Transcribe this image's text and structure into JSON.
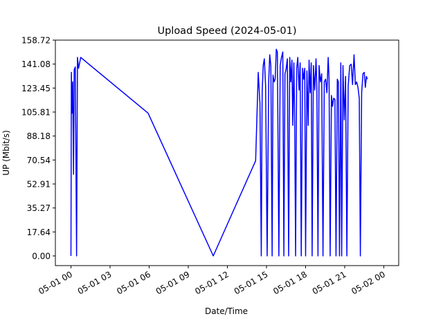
{
  "chart_data": {
    "type": "line",
    "title": "Upload Speed (2024-05-01)",
    "xlabel": "Date/Time",
    "ylabel": "UP (Mbit/s)",
    "ylim": [
      0,
      158.72
    ],
    "xlim": [
      "2024-05-01T00:00",
      "2024-05-02T00:00"
    ],
    "y_ticks": [
      "0.00",
      "17.64",
      "35.27",
      "52.91",
      "70.54",
      "88.18",
      "105.81",
      "123.45",
      "141.08",
      "158.72"
    ],
    "x_ticks": [
      {
        "t": "2024-05-01T00:00",
        "label": "05-01 00"
      },
      {
        "t": "2024-05-01T03:00",
        "label": "05-01 03"
      },
      {
        "t": "2024-05-01T06:00",
        "label": "05-01 06"
      },
      {
        "t": "2024-05-01T09:00",
        "label": "05-01 09"
      },
      {
        "t": "2024-05-01T12:00",
        "label": "05-01 12"
      },
      {
        "t": "2024-05-01T15:00",
        "label": "05-01 15"
      },
      {
        "t": "2024-05-01T18:00",
        "label": "05-01 18"
      },
      {
        "t": "2024-05-01T21:00",
        "label": "05-01 21"
      },
      {
        "t": "2024-05-02T00:00",
        "label": "05-02 00"
      }
    ],
    "grid": false,
    "line_color": "#0000ff",
    "series": [
      {
        "points": [
          [
            "2024-05-01T00:00",
            0
          ],
          [
            "2024-05-01T00:02",
            135
          ],
          [
            "2024-05-01T00:05",
            105
          ],
          [
            "2024-05-01T00:08",
            128
          ],
          [
            "2024-05-01T00:12",
            60
          ],
          [
            "2024-05-01T00:15",
            137
          ],
          [
            "2024-05-01T00:20",
            139
          ],
          [
            "2024-05-01T00:26",
            0
          ],
          [
            "2024-05-01T00:30",
            146
          ],
          [
            "2024-05-01T00:35",
            138
          ],
          [
            "2024-05-01T00:45",
            146
          ],
          [
            "2024-05-01T05:55",
            105
          ],
          [
            "2024-05-01T10:55",
            0
          ],
          [
            "2024-05-01T14:10",
            70
          ],
          [
            "2024-05-01T14:22",
            135
          ],
          [
            "2024-05-01T14:30",
            112
          ],
          [
            "2024-05-01T14:36",
            0
          ],
          [
            "2024-05-01T14:40",
            120
          ],
          [
            "2024-05-01T14:45",
            140
          ],
          [
            "2024-05-01T14:50",
            145
          ],
          [
            "2024-05-01T14:56",
            125
          ],
          [
            "2024-05-01T15:03",
            0
          ],
          [
            "2024-05-01T15:10",
            128
          ],
          [
            "2024-05-01T15:15",
            148
          ],
          [
            "2024-05-01T15:20",
            140
          ],
          [
            "2024-05-01T15:26",
            0
          ],
          [
            "2024-05-01T15:30",
            133
          ],
          [
            "2024-05-01T15:35",
            128
          ],
          [
            "2024-05-01T15:40",
            130
          ],
          [
            "2024-05-01T15:45",
            152
          ],
          [
            "2024-05-01T15:50",
            150
          ],
          [
            "2024-05-01T15:57",
            0
          ],
          [
            "2024-05-01T16:03",
            140
          ],
          [
            "2024-05-01T16:09",
            146
          ],
          [
            "2024-05-01T16:15",
            150
          ],
          [
            "2024-05-01T16:20",
            0
          ],
          [
            "2024-05-01T16:25",
            134
          ],
          [
            "2024-05-01T16:30",
            137
          ],
          [
            "2024-05-01T16:36",
            145
          ],
          [
            "2024-05-01T16:42",
            0
          ],
          [
            "2024-05-01T16:47",
            146
          ],
          [
            "2024-05-01T16:52",
            128
          ],
          [
            "2024-05-01T16:57",
            144
          ],
          [
            "2024-05-01T17:01",
            96
          ],
          [
            "2024-05-01T17:06",
            142
          ],
          [
            "2024-05-01T17:10",
            96
          ],
          [
            "2024-05-01T17:14",
            0
          ],
          [
            "2024-05-01T17:19",
            138
          ],
          [
            "2024-05-01T17:24",
            146
          ],
          [
            "2024-05-01T17:30",
            122
          ],
          [
            "2024-05-01T17:35",
            142
          ],
          [
            "2024-05-01T17:40",
            0
          ],
          [
            "2024-05-01T17:46",
            138
          ],
          [
            "2024-05-01T17:51",
            130
          ],
          [
            "2024-05-01T17:56",
            138
          ],
          [
            "2024-05-01T18:00",
            0
          ],
          [
            "2024-05-01T18:06",
            136
          ],
          [
            "2024-05-01T18:12",
            96
          ],
          [
            "2024-05-01T18:16",
            144
          ],
          [
            "2024-05-01T18:21",
            120
          ],
          [
            "2024-05-01T18:26",
            142
          ],
          [
            "2024-05-01T18:30",
            0
          ],
          [
            "2024-05-01T18:36",
            140
          ],
          [
            "2024-05-01T18:42",
            122
          ],
          [
            "2024-05-01T18:48",
            145
          ],
          [
            "2024-05-01T18:52",
            122
          ],
          [
            "2024-05-01T18:57",
            0
          ],
          [
            "2024-05-01T19:02",
            140
          ],
          [
            "2024-05-01T19:08",
            128
          ],
          [
            "2024-05-01T19:14",
            134
          ],
          [
            "2024-05-01T19:20",
            0
          ],
          [
            "2024-05-01T19:26",
            128
          ],
          [
            "2024-05-01T19:32",
            130
          ],
          [
            "2024-05-01T19:38",
            120
          ],
          [
            "2024-05-01T19:44",
            146
          ],
          [
            "2024-05-01T19:48",
            130
          ],
          [
            "2024-05-01T19:53",
            0
          ],
          [
            "2024-05-01T19:59",
            118
          ],
          [
            "2024-05-01T20:04",
            110
          ],
          [
            "2024-05-01T20:09",
            116
          ],
          [
            "2024-05-01T20:15",
            115
          ],
          [
            "2024-05-01T20:20",
            0
          ],
          [
            "2024-05-01T20:26",
            130
          ],
          [
            "2024-05-01T20:31",
            128
          ],
          [
            "2024-05-01T20:36",
            0
          ],
          [
            "2024-05-01T20:42",
            142
          ],
          [
            "2024-05-01T20:46",
            0
          ],
          [
            "2024-05-01T20:52",
            140
          ],
          [
            "2024-05-01T20:58",
            100
          ],
          [
            "2024-05-01T21:04",
            132
          ],
          [
            "2024-05-01T21:10",
            0
          ],
          [
            "2024-05-01T21:16",
            125
          ],
          [
            "2024-05-01T21:23",
            140
          ],
          [
            "2024-05-01T21:30",
            141
          ],
          [
            "2024-05-01T21:36",
            126
          ],
          [
            "2024-05-01T21:43",
            148
          ],
          [
            "2024-05-01T21:49",
            126
          ],
          [
            "2024-05-01T21:55",
            128
          ],
          [
            "2024-05-01T22:01",
            124
          ],
          [
            "2024-05-01T22:07",
            116
          ],
          [
            "2024-05-01T22:12",
            0
          ],
          [
            "2024-05-01T22:18",
            120
          ],
          [
            "2024-05-01T22:24",
            134
          ],
          [
            "2024-05-01T22:30",
            135
          ],
          [
            "2024-05-01T22:35",
            124
          ],
          [
            "2024-05-01T22:40",
            132
          ],
          [
            "2024-05-01T22:44",
            130
          ]
        ]
      }
    ]
  }
}
